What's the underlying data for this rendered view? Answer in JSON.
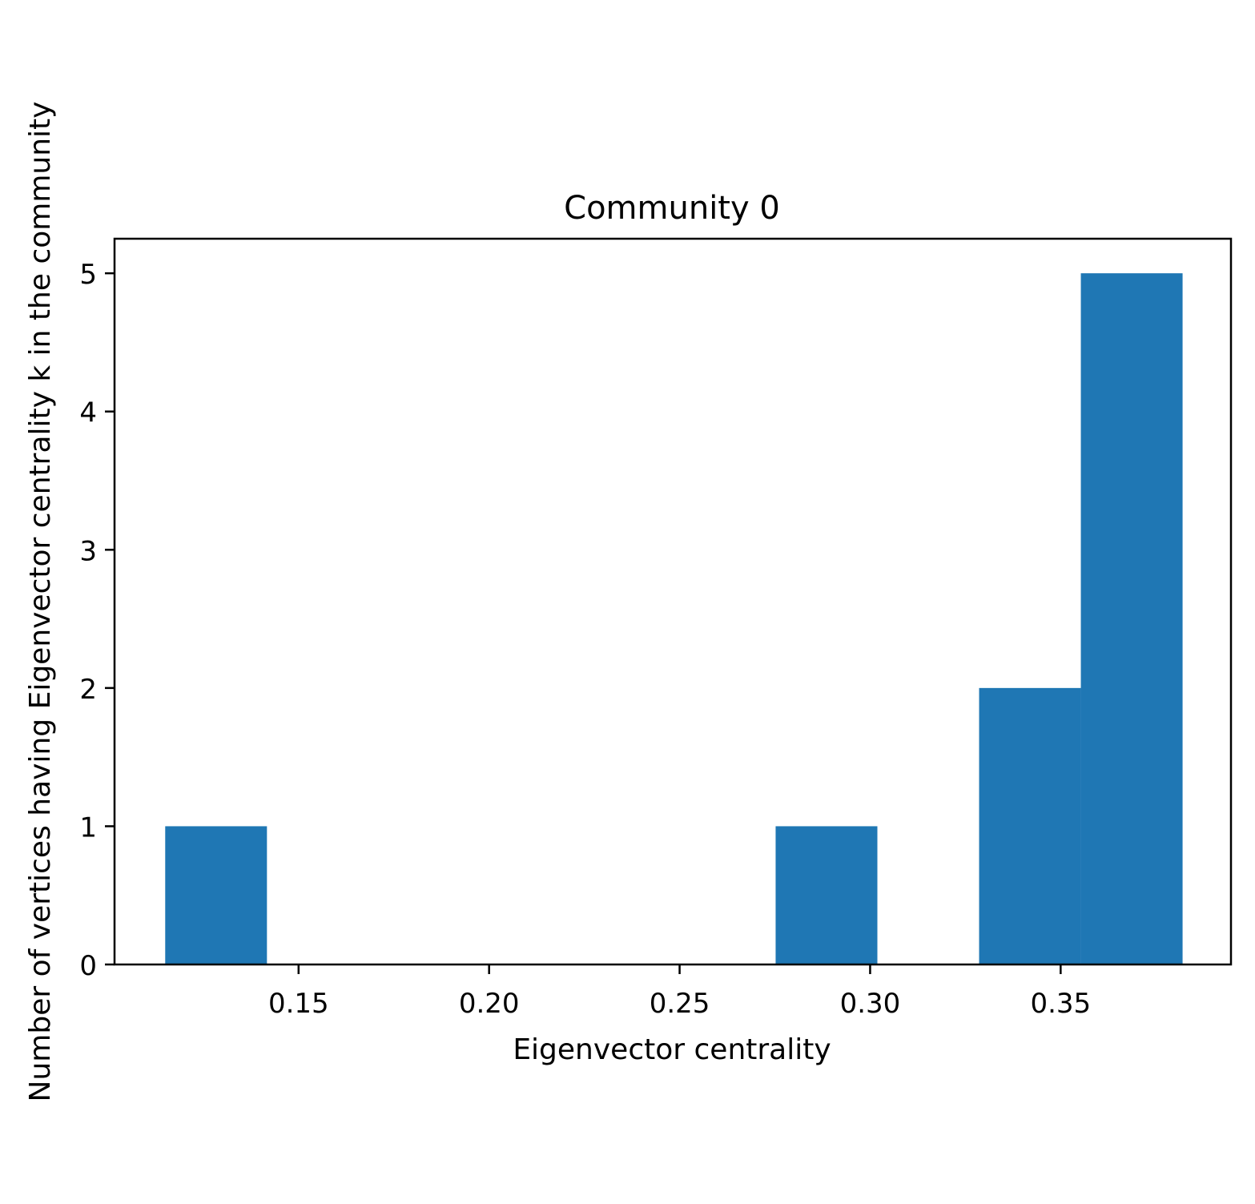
{
  "chart_data": {
    "type": "bar",
    "title": "Community 0",
    "xlabel": "Eigenvector centrality",
    "ylabel": "Number of vertices having Eigenvector centrality k in the community",
    "xlim": [
      0.1017,
      0.3947
    ],
    "ylim": [
      0,
      5.25
    ],
    "xticks": [
      0.15,
      0.2,
      0.25,
      0.3,
      0.35
    ],
    "xtick_labels": [
      "0.15",
      "0.20",
      "0.25",
      "0.30",
      "0.35"
    ],
    "yticks": [
      0,
      1,
      2,
      3,
      4,
      5
    ],
    "ytick_labels": [
      "0",
      "1",
      "2",
      "3",
      "4",
      "5"
    ],
    "bins": [
      {
        "x0": 0.115,
        "x1": 0.1417,
        "count": 1
      },
      {
        "x0": 0.1417,
        "x1": 0.1684,
        "count": 0
      },
      {
        "x0": 0.1684,
        "x1": 0.1951,
        "count": 0
      },
      {
        "x0": 0.1951,
        "x1": 0.2218,
        "count": 0
      },
      {
        "x0": 0.2218,
        "x1": 0.2485,
        "count": 0
      },
      {
        "x0": 0.2485,
        "x1": 0.2752,
        "count": 0
      },
      {
        "x0": 0.2752,
        "x1": 0.3019,
        "count": 1
      },
      {
        "x0": 0.3019,
        "x1": 0.3286,
        "count": 0
      },
      {
        "x0": 0.3286,
        "x1": 0.3553,
        "count": 2
      },
      {
        "x0": 0.3553,
        "x1": 0.382,
        "count": 5
      }
    ],
    "bar_color": "#1f77b4",
    "grid": false
  }
}
